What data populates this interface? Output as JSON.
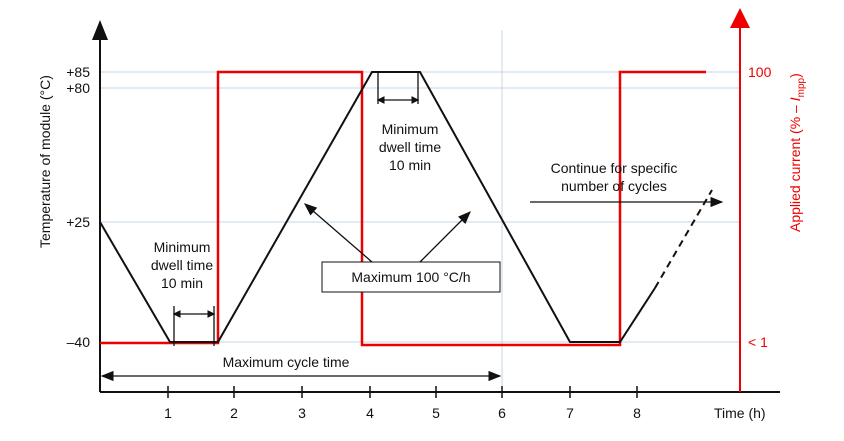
{
  "y_axis": {
    "label": "Temperature of module  (°C)",
    "ticks": [
      "+85",
      "+80",
      "+25",
      "–40"
    ]
  },
  "right_axis": {
    "label": "Applied current  (% – ",
    "symbol": "I",
    "subscript": "mpp",
    "close": ")",
    "ticks": [
      "100",
      "< 1"
    ]
  },
  "x_axis": {
    "label": "Time  (h)",
    "ticks": [
      "1",
      "2",
      "3",
      "4",
      "5",
      "6",
      "7",
      "8"
    ]
  },
  "annotations": {
    "dwell_left": [
      "Minimum",
      "dwell time",
      "10 min"
    ],
    "dwell_top": [
      "Minimum",
      "dwell time",
      "10 min"
    ],
    "ramp_rate": "Maximum 100 °C/h",
    "continue": [
      "Continue for specific",
      "number of cycles"
    ],
    "cycle_time": "Maximum cycle time"
  }
}
